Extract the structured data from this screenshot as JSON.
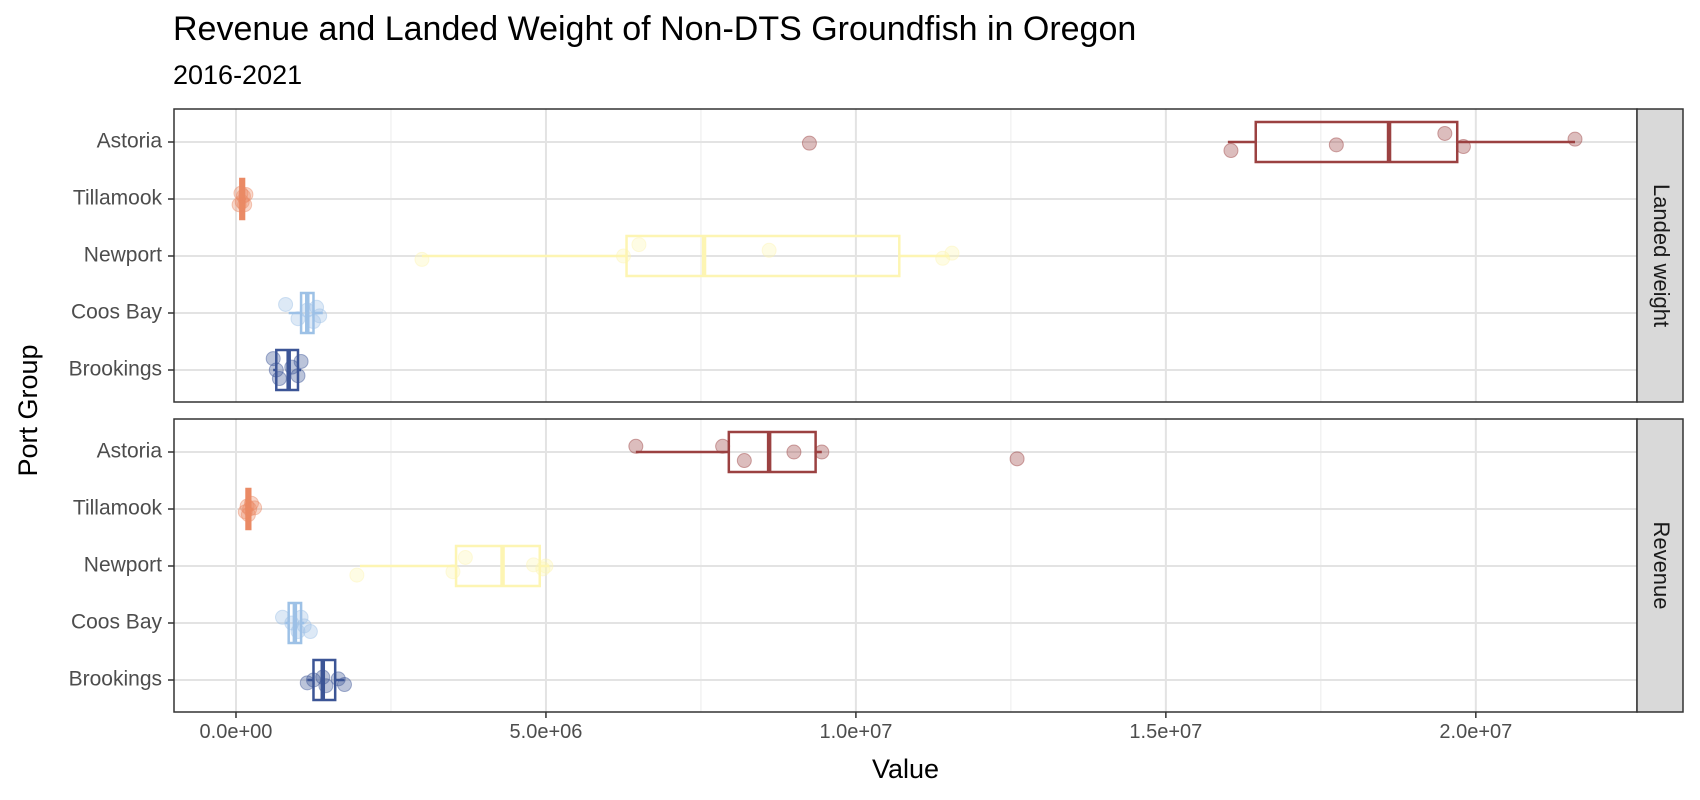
{
  "chart_data": {
    "type": "boxplot",
    "title": "Revenue and Landed Weight of Non-DTS Groundfish in Oregon",
    "subtitle": "2016-2021",
    "xlabel": "Value",
    "ylabel": "Port Group",
    "xlim": [
      -1000000,
      22600000
    ],
    "x_ticks": [
      0,
      5000000,
      10000000,
      15000000,
      20000000
    ],
    "x_tick_labels": [
      "0.0e+00",
      "5.0e+06",
      "1.0e+07",
      "1.5e+07",
      "2.0e+07"
    ],
    "categories": [
      "Astoria",
      "Tillamook",
      "Newport",
      "Coos Bay",
      "Brookings"
    ],
    "colors": {
      "Astoria": "#9B4141",
      "Tillamook": "#EA8A65",
      "Newport": "#FDF5B3",
      "Coos Bay": "#9DC1E6",
      "Brookings": "#3C5596"
    },
    "grid": true,
    "panels": [
      {
        "label": "Landed weight",
        "groups": [
          {
            "port": "Astoria",
            "whisker_low": 16000000,
            "q1": 16450000,
            "median": 18600000,
            "q3": 19700000,
            "whisker_high": 21600000,
            "points": [
              16050000,
              17750000,
              19500000,
              19800000,
              21600000,
              9250000
            ],
            "jitter": [
              0.15,
              0.05,
              -0.15,
              0.08,
              -0.05,
              0.02
            ]
          },
          {
            "port": "Tillamook",
            "whisker_low": 40000,
            "q1": 70000,
            "median": 100000,
            "q3": 130000,
            "whisker_high": 160000,
            "points": [
              50000,
              80000,
              100000,
              120000,
              140000,
              160000
            ],
            "jitter": [
              0.1,
              -0.1,
              0.05,
              -0.05,
              0.1,
              -0.08
            ]
          },
          {
            "port": "Newport",
            "whisker_low": 3000000,
            "q1": 6300000,
            "median": 7550000,
            "q3": 10700000,
            "whisker_high": 11500000,
            "points": [
              3000000,
              6250000,
              6500000,
              8600000,
              11400000,
              11550000
            ],
            "jitter": [
              0.06,
              0.0,
              -0.2,
              -0.1,
              0.04,
              -0.05
            ]
          },
          {
            "port": "Coos Bay",
            "whisker_low": 850000,
            "q1": 1050000,
            "median": 1150000,
            "q3": 1250000,
            "whisker_high": 1400000,
            "points": [
              800000,
              1000000,
              1150000,
              1250000,
              1300000,
              1350000
            ],
            "jitter": [
              -0.15,
              0.1,
              -0.05,
              0.15,
              -0.1,
              0.05
            ]
          },
          {
            "port": "Brookings",
            "whisker_low": 600000,
            "q1": 650000,
            "median": 850000,
            "q3": 1000000,
            "whisker_high": 1050000,
            "points": [
              600000,
              650000,
              700000,
              900000,
              1000000,
              1050000
            ],
            "jitter": [
              -0.2,
              0.0,
              0.15,
              -0.05,
              0.1,
              -0.15
            ]
          }
        ]
      },
      {
        "label": "Revenue",
        "groups": [
          {
            "port": "Astoria",
            "whisker_low": 6450000,
            "q1": 7950000,
            "median": 8600000,
            "q3": 9350000,
            "whisker_high": 9450000,
            "points": [
              6450000,
              7850000,
              8200000,
              9000000,
              9450000,
              12600000
            ],
            "jitter": [
              -0.1,
              -0.1,
              0.15,
              0.0,
              0.0,
              0.12
            ]
          },
          {
            "port": "Tillamook",
            "whisker_low": 150000,
            "q1": 170000,
            "median": 200000,
            "q3": 230000,
            "whisker_high": 270000,
            "points": [
              150000,
              180000,
              200000,
              220000,
              250000,
              300000
            ],
            "jitter": [
              0.05,
              -0.05,
              0.1,
              0.0,
              -0.1,
              -0.02
            ]
          },
          {
            "port": "Newport",
            "whisker_low": 2000000,
            "q1": 3550000,
            "median": 4300000,
            "q3": 4900000,
            "whisker_high": 5050000,
            "points": [
              1950000,
              3500000,
              3700000,
              4800000,
              5000000,
              4950000
            ],
            "jitter": [
              0.16,
              0.1,
              -0.15,
              -0.02,
              0.0,
              0.05
            ]
          },
          {
            "port": "Coos Bay",
            "whisker_low": 800000,
            "q1": 850000,
            "median": 950000,
            "q3": 1050000,
            "whisker_high": 1100000,
            "points": [
              750000,
              900000,
              1000000,
              1050000,
              1100000,
              1200000
            ],
            "jitter": [
              -0.1,
              0.0,
              0.15,
              -0.1,
              0.05,
              0.15
            ]
          },
          {
            "port": "Brookings",
            "whisker_low": 1150000,
            "q1": 1250000,
            "median": 1400000,
            "q3": 1600000,
            "whisker_high": 1750000,
            "points": [
              1150000,
              1250000,
              1400000,
              1450000,
              1650000,
              1750000
            ],
            "jitter": [
              0.05,
              0.0,
              -0.05,
              0.1,
              -0.02,
              0.08
            ]
          }
        ]
      }
    ]
  }
}
